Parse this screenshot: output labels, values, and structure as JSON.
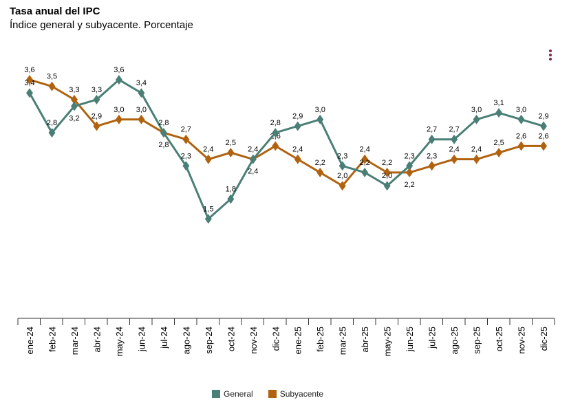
{
  "chart_data": {
    "type": "line",
    "title": "Tasa anual del IPC",
    "subtitle": "Índice general y subyacente. Porcentaje",
    "categories": [
      "ene-24",
      "feb-24",
      "mar-24",
      "abr-24",
      "may-24",
      "jun-24",
      "jul-24",
      "ago-24",
      "sep-24",
      "oct-24",
      "nov-24",
      "dic-24",
      "ene-25",
      "feb-25",
      "mar-25",
      "abr-25",
      "may-25",
      "jun-25",
      "jul-25",
      "ago-25",
      "sep-25",
      "oct-25",
      "nov-25",
      "dic-25"
    ],
    "series": [
      {
        "name": "General",
        "color": "#4a7f76",
        "values": [
          3.4,
          2.8,
          3.2,
          3.3,
          3.6,
          3.4,
          2.8,
          2.3,
          1.5,
          1.8,
          2.4,
          2.8,
          2.9,
          3.0,
          2.3,
          2.2,
          2.0,
          2.3,
          2.7,
          2.7,
          3.0,
          3.1,
          3.0,
          2.9
        ]
      },
      {
        "name": "Subyacente",
        "color": "#b0620f",
        "values": [
          3.6,
          3.5,
          3.3,
          2.9,
          3.0,
          3.0,
          2.8,
          2.7,
          2.4,
          2.5,
          2.4,
          2.6,
          2.4,
          2.2,
          2.0,
          2.4,
          2.2,
          2.2,
          2.3,
          2.4,
          2.4,
          2.5,
          2.6,
          2.6
        ]
      }
    ],
    "ylim": [
      0,
      4
    ],
    "grid": false,
    "y_axis_visible": false,
    "data_labels": true,
    "decimal_separator": ",",
    "marker": "diamond",
    "legend_position": "bottom"
  },
  "menu_icon": "kebab-menu-icon"
}
